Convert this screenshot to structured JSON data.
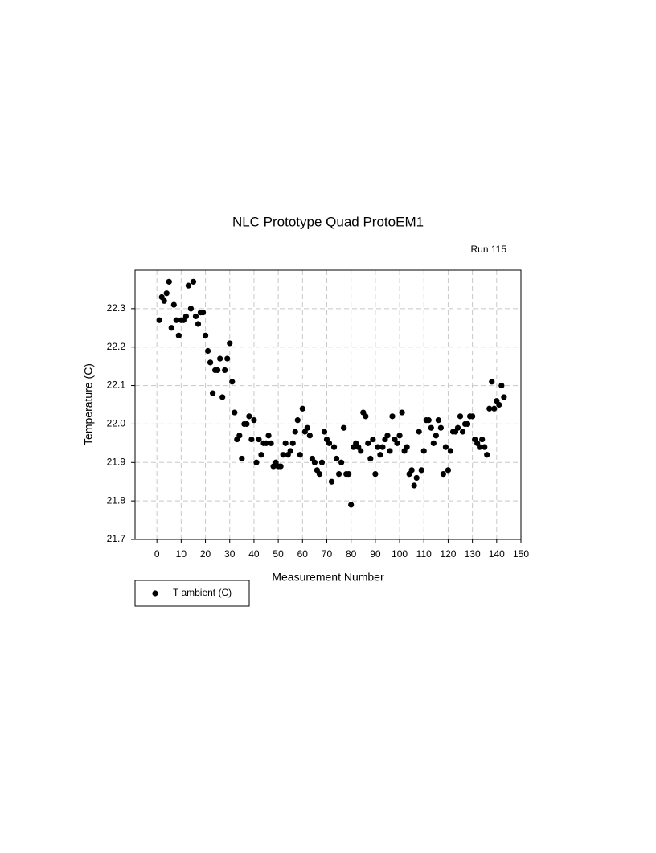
{
  "chart_data": {
    "type": "scatter",
    "title": "NLC Prototype Quad ProtoEM1",
    "subtitle": "Run 115",
    "x_label": "Measurement Number",
    "y_label": "Temperature (C)",
    "xlim": [
      -9,
      150
    ],
    "xticks": [
      0,
      10,
      20,
      30,
      40,
      50,
      60,
      70,
      80,
      90,
      100,
      110,
      120,
      130,
      140,
      150
    ],
    "ylim": [
      21.7,
      22.4
    ],
    "yticks": [
      21.7,
      21.8,
      21.9,
      {
        "value": 22,
        "label": "22.0"
      },
      22.1,
      22.2,
      22.3
    ],
    "grid": true,
    "legend": "bottom-left",
    "series": [
      {
        "name": "T ambient (C)",
        "color": "#000000",
        "x": [
          1,
          2,
          3,
          4,
          5,
          6,
          7,
          8,
          9,
          10,
          11,
          12,
          13,
          14,
          15,
          16,
          17,
          18,
          19,
          20,
          21,
          22,
          23,
          24,
          25,
          26,
          27,
          28,
          29,
          30,
          31,
          32,
          33,
          34,
          35,
          36,
          37,
          38,
          39,
          40,
          41,
          42,
          43,
          44,
          45,
          46,
          47,
          48,
          49,
          50,
          51,
          52,
          53,
          54,
          55,
          56,
          57,
          58,
          59,
          60,
          61,
          62,
          63,
          64,
          65,
          66,
          67,
          68,
          69,
          70,
          71,
          72,
          73,
          74,
          75,
          76,
          77,
          78,
          79,
          80,
          81,
          82,
          83,
          84,
          85,
          86,
          87,
          88,
          89,
          90,
          91,
          92,
          93,
          94,
          95,
          96,
          97,
          98,
          99,
          100,
          101,
          102,
          103,
          104,
          105,
          106,
          107,
          108,
          109,
          110,
          111,
          112,
          113,
          114,
          115,
          116,
          117,
          118,
          119,
          120,
          121,
          122,
          123,
          124,
          125,
          126,
          127,
          128,
          129,
          130,
          131,
          132,
          133,
          134,
          135,
          136,
          137,
          138,
          139,
          140,
          141,
          142,
          143
        ],
        "values": [
          22.27,
          22.33,
          22.32,
          22.34,
          22.37,
          22.25,
          22.31,
          22.27,
          22.23,
          22.27,
          22.27,
          22.28,
          22.36,
          22.3,
          22.37,
          22.28,
          22.26,
          22.29,
          22.29,
          22.23,
          22.19,
          22.16,
          22.08,
          22.14,
          22.14,
          22.17,
          22.07,
          22.14,
          22.17,
          22.21,
          22.11,
          22.03,
          21.96,
          21.97,
          21.91,
          22.0,
          22.0,
          22.02,
          21.96,
          22.01,
          21.9,
          21.96,
          21.92,
          21.95,
          21.95,
          21.97,
          21.95,
          21.89,
          21.9,
          21.89,
          21.89,
          21.92,
          21.95,
          21.92,
          21.93,
          21.95,
          21.98,
          22.01,
          21.92,
          22.04,
          21.98,
          21.99,
          21.97,
          21.91,
          21.9,
          21.88,
          21.87,
          21.9,
          21.98,
          21.96,
          21.95,
          21.85,
          21.94,
          21.91,
          21.87,
          21.9,
          21.99,
          21.87,
          21.87,
          21.79,
          21.94,
          21.95,
          21.94,
          21.93,
          22.03,
          22.02,
          21.95,
          21.91,
          21.96,
          21.87,
          21.94,
          21.92,
          21.94,
          21.96,
          21.97,
          21.93,
          22.02,
          21.96,
          21.95,
          21.97,
          22.03,
          21.93,
          21.94,
          21.87,
          21.88,
          21.84,
          21.86,
          21.98,
          21.88,
          21.93,
          22.01,
          22.01,
          21.99,
          21.95,
          21.97,
          22.01,
          21.99,
          21.87,
          21.94,
          21.88,
          21.93,
          21.98,
          21.98,
          21.99,
          22.02,
          21.98,
          22.0,
          22.0,
          22.02,
          22.02,
          21.96,
          21.95,
          21.94,
          21.96,
          21.94,
          21.92,
          22.04,
          22.11,
          22.04,
          22.06,
          22.05,
          22.1,
          22.07
        ]
      }
    ]
  }
}
